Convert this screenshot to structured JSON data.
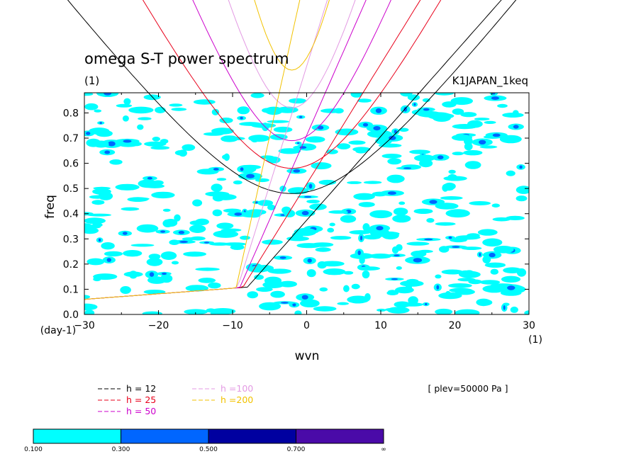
{
  "chart_data": {
    "type": "contour",
    "title": "omega S-T power spectrum",
    "subtitle_left": "(1)",
    "subtitle_right": "K1JAPAN_1keq",
    "xlabel": "wvn",
    "xunit": "(1)",
    "ylabel": "freq",
    "yunit": "(day-1)",
    "xlim": [
      -30,
      30
    ],
    "ylim": [
      0,
      0.88
    ],
    "xticks": [
      "−30",
      "−20",
      "−10",
      "0",
      "10",
      "20",
      "30"
    ],
    "xtick_values": [
      -30,
      -20,
      -10,
      0,
      10,
      20,
      30
    ],
    "yticks": [
      "0.0",
      "0.1",
      "0.2",
      "0.3",
      "0.4",
      "0.5",
      "0.6",
      "0.7",
      "0.8"
    ],
    "ytick_values": [
      0,
      0.1,
      0.2,
      0.3,
      0.4,
      0.5,
      0.6,
      0.7,
      0.8
    ],
    "annotation": "[ plev=50000 Pa ]",
    "dispersion_curves": [
      {
        "label": "h = 12",
        "color": "#000000",
        "equivalent_depth": 12
      },
      {
        "label": "h = 25",
        "color": "#e8001a",
        "equivalent_depth": 25
      },
      {
        "label": "h = 50",
        "color": "#cc00cc",
        "equivalent_depth": 50
      },
      {
        "label": "h =100",
        "color": "#e39ae3",
        "equivalent_depth": 100
      },
      {
        "label": "h =200",
        "color": "#f2c200",
        "equivalent_depth": 200
      }
    ],
    "colorbar": {
      "levels": [
        "0.100",
        "0.300",
        "0.500",
        "0.700",
        "∞"
      ],
      "colors": [
        "#00ffff",
        "#0066ff",
        "#0000a0",
        "#4a0aa8"
      ]
    },
    "grid": false,
    "legend_position": "bottom-left"
  }
}
